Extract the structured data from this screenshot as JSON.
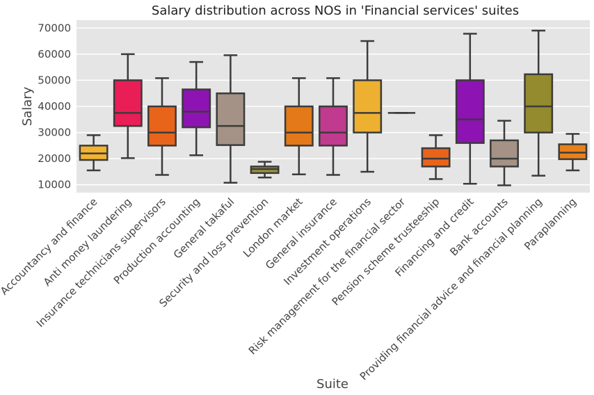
{
  "chart_data": {
    "type": "box",
    "title": "Salary distribution across NOS in 'Financial services' suites",
    "xlabel": "Suite",
    "ylabel": "Salary",
    "ylim": [
      7000,
      73000
    ],
    "yticks": [
      10000,
      20000,
      30000,
      40000,
      50000,
      60000,
      70000
    ],
    "grid": true,
    "categories": [
      "Accountancy and finance",
      "Anti money laundering",
      "Insurance technicians supervisors",
      "Production accounting",
      "General takaful",
      "Security and loss prevention",
      "London market",
      "General insurance",
      "Investment operations",
      "Risk management for the financial sector",
      "Pension scheme trusteeship",
      "Financing and credit",
      "Bank accounts",
      "Providing financial advice and financial planning",
      "Paraplanning"
    ],
    "boxes": [
      {
        "min": 15500,
        "q1": 19500,
        "median": 22000,
        "q3": 25000,
        "max": 29000,
        "color": "#F2B32F"
      },
      {
        "min": 20200,
        "q1": 32500,
        "median": 37500,
        "q3": 50000,
        "max": 60000,
        "color": "#E91E56"
      },
      {
        "min": 13800,
        "q1": 25000,
        "median": 30000,
        "q3": 40000,
        "max": 50800,
        "color": "#E8641B"
      },
      {
        "min": 21300,
        "q1": 32000,
        "median": 38000,
        "q3": 46500,
        "max": 57000,
        "color": "#8E13B3"
      },
      {
        "min": 10800,
        "q1": 25200,
        "median": 32500,
        "q3": 45000,
        "max": 59600,
        "color": "#A39285"
      },
      {
        "min": 12800,
        "q1": 14500,
        "median": 16000,
        "q3": 17000,
        "max": 18800,
        "color": "#9E9438"
      },
      {
        "min": 14000,
        "q1": 25000,
        "median": 30000,
        "q3": 40000,
        "max": 50800,
        "color": "#E37918"
      },
      {
        "min": 13800,
        "q1": 25000,
        "median": 30000,
        "q3": 40000,
        "max": 50800,
        "color": "#C03A8F"
      },
      {
        "min": 15000,
        "q1": 30000,
        "median": 37500,
        "q3": 50000,
        "max": 65000,
        "color": "#EDB030"
      },
      {
        "min": 37500,
        "q1": 37500,
        "median": 37500,
        "q3": 37500,
        "max": 37500,
        "color": "#E8641B"
      },
      {
        "min": 12200,
        "q1": 17000,
        "median": 20000,
        "q3": 24000,
        "max": 29000,
        "color": "#E8641B"
      },
      {
        "min": 10400,
        "q1": 26000,
        "median": 35000,
        "q3": 50000,
        "max": 67800,
        "color": "#8E13B3"
      },
      {
        "min": 9800,
        "q1": 17000,
        "median": 20000,
        "q3": 27000,
        "max": 34500,
        "color": "#A39285"
      },
      {
        "min": 13500,
        "q1": 30000,
        "median": 40000,
        "q3": 52300,
        "max": 69000,
        "color": "#948A2E"
      },
      {
        "min": 15500,
        "q1": 19800,
        "median": 22300,
        "q3": 25500,
        "max": 29500,
        "color": "#E8811A"
      }
    ]
  }
}
